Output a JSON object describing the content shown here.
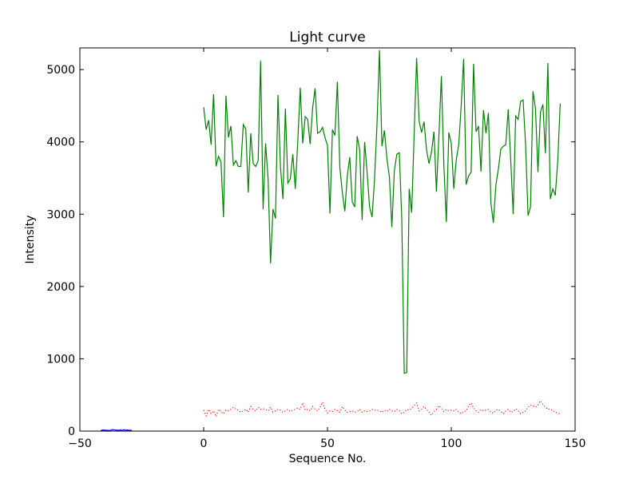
{
  "chart_data": {
    "type": "line",
    "title": "Light curve",
    "xlabel": "Sequence No.",
    "ylabel": "Intensity",
    "xlim": [
      -50,
      150
    ],
    "ylim": [
      0,
      5300
    ],
    "xticks": [
      -50,
      0,
      50,
      100,
      150
    ],
    "xtick_labels": [
      "−50",
      "0",
      "50",
      "100",
      "150"
    ],
    "yticks": [
      0,
      1000,
      2000,
      3000,
      4000,
      5000
    ],
    "ytick_labels": [
      "0",
      "1000",
      "2000",
      "3000",
      "4000",
      "5000"
    ],
    "grid": false,
    "series": [
      {
        "color": "#008000",
        "style": "solid",
        "x_start": 0,
        "values": [
          4480,
          4170,
          4300,
          3960,
          4660,
          3660,
          3800,
          3720,
          2960,
          4640,
          4060,
          4220,
          3680,
          3740,
          3660,
          3660,
          4240,
          4180,
          3300,
          4120,
          3700,
          3660,
          3740,
          5120,
          3070,
          3980,
          3500,
          2320,
          3070,
          2940,
          4650,
          3660,
          3210,
          4460,
          3430,
          3490,
          3830,
          3350,
          4000,
          4750,
          3980,
          4350,
          4310,
          3970,
          4470,
          4740,
          4120,
          4140,
          4200,
          4060,
          3950,
          3010,
          4170,
          4090,
          4830,
          3640,
          3300,
          3040,
          3530,
          3790,
          3170,
          3100,
          4080,
          3890,
          2920,
          4000,
          3580,
          3100,
          2960,
          3480,
          4250,
          5270,
          3940,
          4160,
          3770,
          3520,
          2820,
          3600,
          3830,
          3850,
          2940,
          800,
          810,
          3350,
          3020,
          4100,
          5160,
          4290,
          4130,
          4280,
          3890,
          3700,
          3860,
          4140,
          3310,
          4090,
          4910,
          3680,
          2890,
          4130,
          3980,
          3350,
          3750,
          3960,
          4500,
          5150,
          3410,
          3530,
          3580,
          5080,
          4140,
          4220,
          3590,
          4440,
          4120,
          4400,
          3150,
          2880,
          3400,
          3620,
          3900,
          3940,
          3960,
          4450,
          3750,
          3000,
          4360,
          4310,
          4560,
          4580,
          3970,
          2980,
          3100,
          4700,
          4460,
          3580,
          4410,
          4520,
          3840,
          5090,
          3210,
          3350,
          3260,
          3740,
          4530
        ]
      },
      {
        "color": "#ff0000",
        "style": "dotted",
        "x_start": 0,
        "values": [
          290,
          210,
          300,
          240,
          280,
          200,
          300,
          270,
          240,
          290,
          280,
          300,
          330,
          300,
          290,
          260,
          280,
          300,
          260,
          340,
          300,
          280,
          330,
          300,
          310,
          300,
          280,
          330,
          260,
          280,
          300,
          290,
          260,
          280,
          300,
          270,
          290,
          300,
          320,
          300,
          390,
          290,
          300,
          280,
          340,
          300,
          280,
          330,
          400,
          300,
          250,
          280,
          270,
          300,
          280,
          260,
          340,
          290,
          260,
          270,
          280,
          260,
          270,
          300,
          260,
          280,
          270,
          280,
          300,
          290,
          290,
          280,
          260,
          290,
          270,
          300,
          280,
          270,
          300,
          280,
          240,
          260,
          300,
          290,
          320,
          350,
          390,
          280,
          300,
          340,
          300,
          260,
          220,
          270,
          300,
          350,
          320,
          270,
          300,
          280,
          290,
          280,
          300,
          260,
          240,
          270,
          280,
          350,
          390,
          320,
          280,
          260,
          300,
          280,
          290,
          300,
          260,
          250,
          290,
          300,
          270,
          240,
          280,
          300,
          260,
          270,
          310,
          280,
          240,
          260,
          280,
          330,
          360,
          350,
          330,
          360,
          420,
          370,
          330,
          300,
          310,
          280,
          260,
          250,
          240
        ]
      },
      {
        "color": "#0000ff",
        "style": "solid",
        "x": [
          -41.5,
          -41,
          -38,
          -37.5,
          -37,
          -34,
          -33.5,
          -33,
          -32.5,
          -32,
          -31.5,
          -31,
          -30,
          -29.5,
          -29
        ],
        "values": [
          5,
          15,
          8,
          12,
          20,
          10,
          18,
          6,
          14,
          20,
          8,
          16,
          10,
          12,
          6
        ]
      }
    ]
  }
}
